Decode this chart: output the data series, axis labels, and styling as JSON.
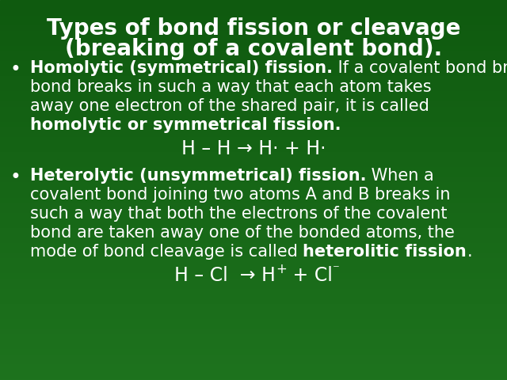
{
  "title_line1": "Types of bond fission or cleavage",
  "title_line2": "(breaking of a covalent bond).",
  "bg_color": "#1e6b1e",
  "title_color": "#ffffff",
  "body_color": "#ffffff",
  "title_fontsize": 20,
  "body_fontsize": 15,
  "equation_fontsize": 17,
  "bullet_char": "•",
  "equation1": "H – H → H· + H·",
  "b1_line1_bold": "Homolytic (symmetrical) fission.",
  "b1_line1_normal": " If a covalent bond breaks in such a way that each atom takes",
  "b1_line2": "bond breaks in such a way that each atom takes",
  "b1_line3": "away one electron of the shared pair, it is called",
  "b1_line4_bold": "homolytic or symmetrical fission.",
  "b2_line1_bold": "Heterolytic (unsymmetrical) fission.",
  "b2_line1_normal": " When a",
  "b2_line2": "covalent bond joining two atoms A and B breaks in",
  "b2_line3": "such a way that both the electrons of the covalent",
  "b2_line4": "bond are taken away one of the bonded atoms, the",
  "b2_line5_normal": "mode of bond cleavage is called ",
  "b2_line5_bold": "heterolitic fission",
  "b2_line5_end": "."
}
